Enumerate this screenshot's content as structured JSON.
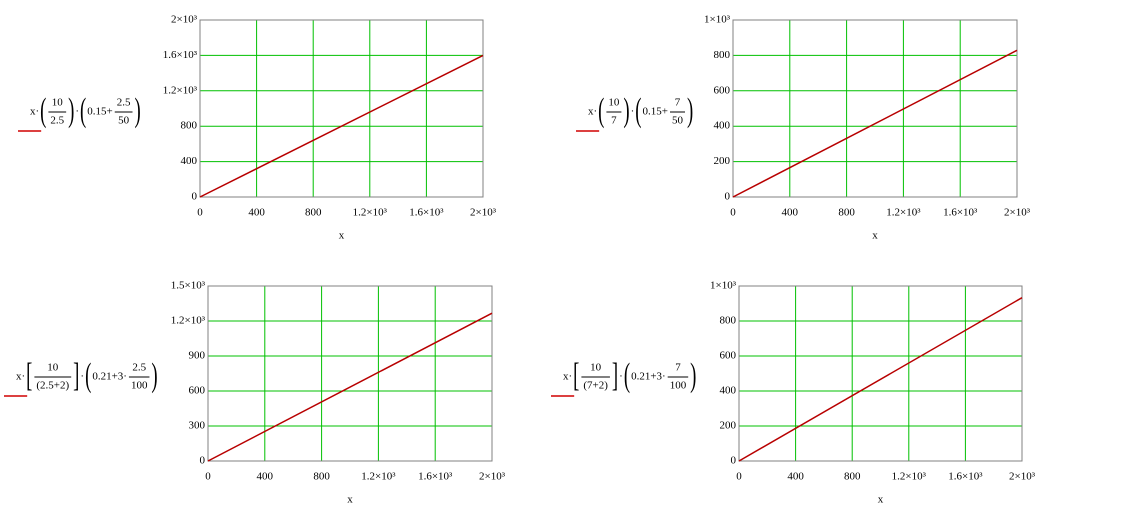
{
  "chart_data": [
    {
      "type": "line",
      "x_label": "x",
      "y_label": [
        "x·",
        "(",
        {
          "num": "10",
          "den": "2.5"
        },
        ")",
        "·",
        "(",
        "0.15+",
        {
          "num": "2.5",
          "den": "50"
        },
        ")"
      ],
      "x": [
        0,
        2000
      ],
      "series": [
        {
          "color": "#b80000",
          "values": [
            0,
            1600
          ]
        }
      ],
      "xlim": [
        0,
        2000
      ],
      "ylim": [
        0,
        2000
      ],
      "xticks": [
        0,
        400,
        800,
        {
          "value": 1200,
          "label": "1.2×10³"
        },
        {
          "value": 1600,
          "label": "1.6×10³"
        },
        {
          "value": 2000,
          "label": "2×10³"
        }
      ],
      "yticks": [
        0,
        400,
        800,
        {
          "value": 1200,
          "label": "1.2×10³"
        },
        {
          "value": 1600,
          "label": "1.6×10³"
        },
        {
          "value": 2000,
          "label": "2×10³"
        }
      ],
      "grid": true,
      "grid_color": "#00c000"
    },
    {
      "type": "line",
      "x_label": "x",
      "y_label": [
        "x·",
        "(",
        {
          "num": "10",
          "den": "7"
        },
        ")",
        "·",
        "(",
        "0.15+",
        {
          "num": "7",
          "den": "50"
        },
        ")"
      ],
      "x": [
        0,
        2000
      ],
      "series": [
        {
          "color": "#b80000",
          "values": [
            0,
            828.6
          ]
        }
      ],
      "xlim": [
        0,
        2000
      ],
      "ylim": [
        0,
        1000
      ],
      "xticks": [
        0,
        400,
        800,
        {
          "value": 1200,
          "label": "1.2×10³"
        },
        {
          "value": 1600,
          "label": "1.6×10³"
        },
        {
          "value": 2000,
          "label": "2×10³"
        }
      ],
      "yticks": [
        0,
        200,
        400,
        600,
        800,
        {
          "value": 1000,
          "label": "1×10³"
        }
      ],
      "grid": true,
      "grid_color": "#00c000"
    },
    {
      "type": "line",
      "x_label": "x",
      "y_label": [
        "x·",
        "[",
        {
          "num": "10",
          "den": "(2.5+2)"
        },
        "]",
        "·",
        "(",
        "0.21+3·",
        {
          "num": "2.5",
          "den": "100"
        },
        ")"
      ],
      "x": [
        0,
        2000
      ],
      "series": [
        {
          "color": "#b80000",
          "values": [
            0,
            1266.7
          ]
        }
      ],
      "xlim": [
        0,
        2000
      ],
      "ylim": [
        0,
        1500
      ],
      "xticks": [
        0,
        400,
        800,
        {
          "value": 1200,
          "label": "1.2×10³"
        },
        {
          "value": 1600,
          "label": "1.6×10³"
        },
        {
          "value": 2000,
          "label": "2×10³"
        }
      ],
      "yticks": [
        0,
        300,
        600,
        900,
        {
          "value": 1200,
          "label": "1.2×10³"
        },
        {
          "value": 1500,
          "label": "1.5×10³"
        }
      ],
      "grid": true,
      "grid_color": "#00c000"
    },
    {
      "type": "line",
      "x_label": "x",
      "y_label": [
        "x·",
        "[",
        {
          "num": "10",
          "den": "(7+2)"
        },
        "]",
        "·",
        "(",
        "0.21+3·",
        {
          "num": "7",
          "den": "100"
        },
        ")"
      ],
      "x": [
        0,
        2000
      ],
      "series": [
        {
          "color": "#b80000",
          "values": [
            0,
            933.3
          ]
        }
      ],
      "xlim": [
        0,
        2000
      ],
      "ylim": [
        0,
        1000
      ],
      "xticks": [
        0,
        400,
        800,
        {
          "value": 1200,
          "label": "1.2×10³"
        },
        {
          "value": 1600,
          "label": "1.6×10³"
        },
        {
          "value": 2000,
          "label": "2×10³"
        }
      ],
      "yticks": [
        0,
        200,
        400,
        600,
        800,
        {
          "value": 1000,
          "label": "1×10³"
        }
      ],
      "grid": true,
      "grid_color": "#00c000"
    }
  ]
}
